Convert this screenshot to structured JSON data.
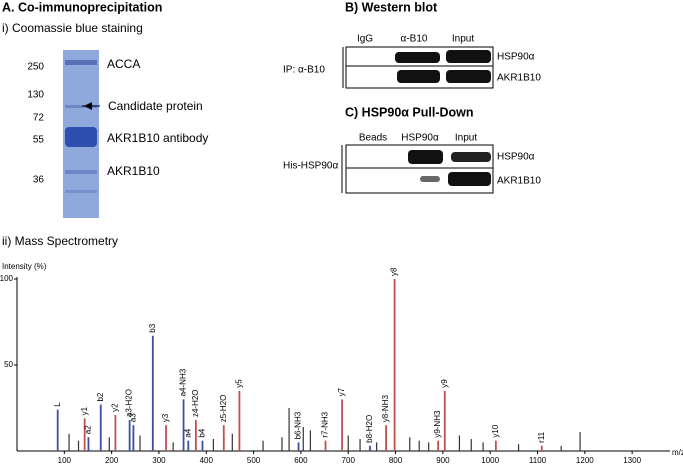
{
  "panel_a": {
    "title": "A. Co-immunoprecipitation",
    "subtitle": "i) Coomassie blue staining",
    "markers": [
      "250",
      "130",
      "72",
      "55",
      "36"
    ],
    "band_labels": [
      "ACCA",
      "Candidate protein",
      "AKR1B10 antibody",
      "AKR1B10"
    ]
  },
  "panel_b": {
    "title": "B) Western blot",
    "lanes": [
      "IgG",
      "α-B10",
      "Input"
    ],
    "ip_label": "IP: α-B10",
    "rows": [
      "HSP90α",
      "AKR1B10"
    ]
  },
  "panel_c": {
    "title": "C) HSP90α Pull-Down",
    "lanes": [
      "Beads",
      "HSP90α",
      "Input"
    ],
    "bait_label": "His-HSP90α",
    "rows": [
      "HSP90α",
      "AKR1B10"
    ]
  },
  "chart_data": {
    "type": "spectrum",
    "title": "ii) Mass Spectrometry",
    "y_label": "Intensity (%)",
    "x_label": "m/z",
    "xlim": [
      0,
      1380
    ],
    "ylim": [
      0,
      100
    ],
    "xticks": [
      100,
      200,
      300,
      400,
      500,
      600,
      700,
      800,
      900,
      1000,
      1100,
      1200,
      1300
    ],
    "yticks": [
      50,
      100
    ],
    "peaks": [
      {
        "label": "L",
        "mz": 86,
        "intensity": 24,
        "color": "#3a4fa0"
      },
      {
        "label": "y1",
        "mz": 143,
        "intensity": 19,
        "color": "#c0504d"
      },
      {
        "label": "a2",
        "mz": 151,
        "intensity": 8,
        "color": "#3a4fa0"
      },
      {
        "label": "b2",
        "mz": 177,
        "intensity": 27,
        "color": "#3a4fa0"
      },
      {
        "label": "y2",
        "mz": 208,
        "intensity": 21,
        "color": "#c0504d"
      },
      {
        "label": "a3-H2O",
        "mz": 238,
        "intensity": 18,
        "color": "#3a4fa0"
      },
      {
        "label": "a3",
        "mz": 246,
        "intensity": 15,
        "color": "#3a4fa0"
      },
      {
        "label": "b3",
        "mz": 287,
        "intensity": 67,
        "color": "#3a4fa0"
      },
      {
        "label": "y3",
        "mz": 315,
        "intensity": 15,
        "color": "#c0504d"
      },
      {
        "label": "a4-NH3",
        "mz": 352,
        "intensity": 30,
        "color": "#3a4fa0"
      },
      {
        "label": "a4",
        "mz": 362,
        "intensity": 6,
        "color": "#3a4fa0"
      },
      {
        "label": "z4-H2O",
        "mz": 378,
        "intensity": 18,
        "color": "#c0504d"
      },
      {
        "label": "b4",
        "mz": 392,
        "intensity": 6,
        "color": "#3a4fa0"
      },
      {
        "label": "z5-H2O",
        "mz": 437,
        "intensity": 15,
        "color": "#c0504d"
      },
      {
        "label": "y5",
        "mz": 470,
        "intensity": 35,
        "color": "#c0504d"
      },
      {
        "label": "b6-NH3",
        "mz": 595,
        "intensity": 5,
        "color": "#3a4fa0"
      },
      {
        "label": "r7-NH3",
        "mz": 652,
        "intensity": 6,
        "color": "#c0504d"
      },
      {
        "label": "y7",
        "mz": 687,
        "intensity": 30,
        "color": "#c0504d"
      },
      {
        "label": "b8-H2O",
        "mz": 746,
        "intensity": 3,
        "color": "#3a4fa0"
      },
      {
        "label": "y8-NH3",
        "mz": 780,
        "intensity": 15,
        "color": "#c0504d"
      },
      {
        "label": "y8",
        "mz": 798,
        "intensity": 100,
        "color": "#c0504d"
      },
      {
        "label": "y9-NH3",
        "mz": 890,
        "intensity": 6,
        "color": "#c0504d"
      },
      {
        "label": "y9",
        "mz": 904,
        "intensity": 35,
        "color": "#c0504d"
      },
      {
        "label": "y10",
        "mz": 1012,
        "intensity": 6,
        "color": "#c0504d"
      },
      {
        "label": "r11",
        "mz": 1109,
        "intensity": 3,
        "color": "#c0504d"
      }
    ],
    "background_peaks": {
      "color": "#333333",
      "mz": [
        110,
        130,
        195,
        260,
        330,
        415,
        455,
        520,
        560,
        575,
        605,
        620,
        700,
        725,
        760,
        830,
        850,
        870,
        935,
        960,
        985,
        1060,
        1150,
        1190
      ],
      "intensity": [
        10,
        6,
        8,
        9,
        5,
        7,
        10,
        6,
        8,
        25,
        14,
        12,
        9,
        7,
        5,
        8,
        6,
        5,
        9,
        7,
        5,
        4,
        3,
        11
      ]
    }
  }
}
